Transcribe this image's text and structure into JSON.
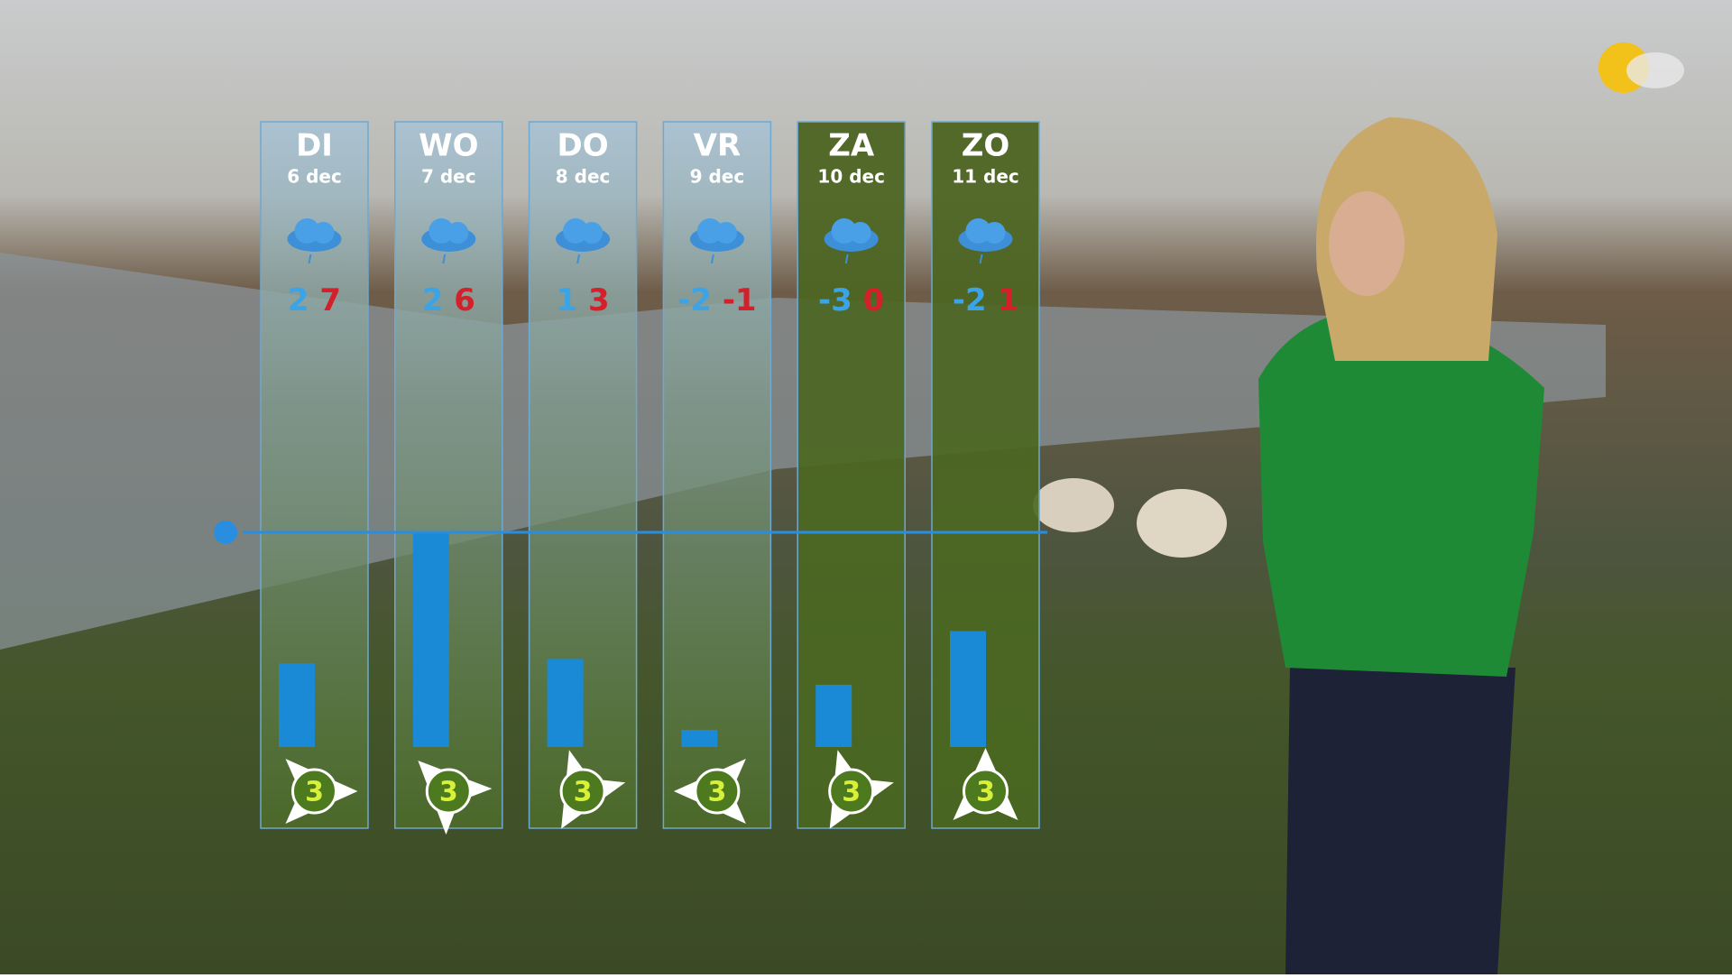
{
  "days": [
    {
      "day": "DI",
      "date": "6 dec",
      "min": 2,
      "max": 7,
      "wind_force": 3,
      "wind_energy": 39,
      "wind_heading": 90
    },
    {
      "day": "WO",
      "date": "7 dec",
      "min": 2,
      "max": 6,
      "wind_force": 3,
      "wind_energy": 100,
      "wind_heading": 315
    },
    {
      "day": "DO",
      "date": "8 dec",
      "min": 1,
      "max": 3,
      "wind_force": 3,
      "wind_energy": 41,
      "wind_heading": 210
    },
    {
      "day": "VR",
      "date": "9 dec",
      "min": -2,
      "max": -1,
      "wind_force": 3,
      "wind_energy": 8,
      "wind_heading": 270
    },
    {
      "day": "ZA",
      "date": "10 dec",
      "min": -3,
      "max": 0,
      "wind_force": 3,
      "wind_energy": 29,
      "wind_heading": 210
    },
    {
      "day": "ZO",
      "date": "11 dec",
      "min": -2,
      "max": 1,
      "wind_force": 3,
      "wind_energy": 54,
      "wind_heading": 0
    }
  ],
  "wind_reference": 100
}
